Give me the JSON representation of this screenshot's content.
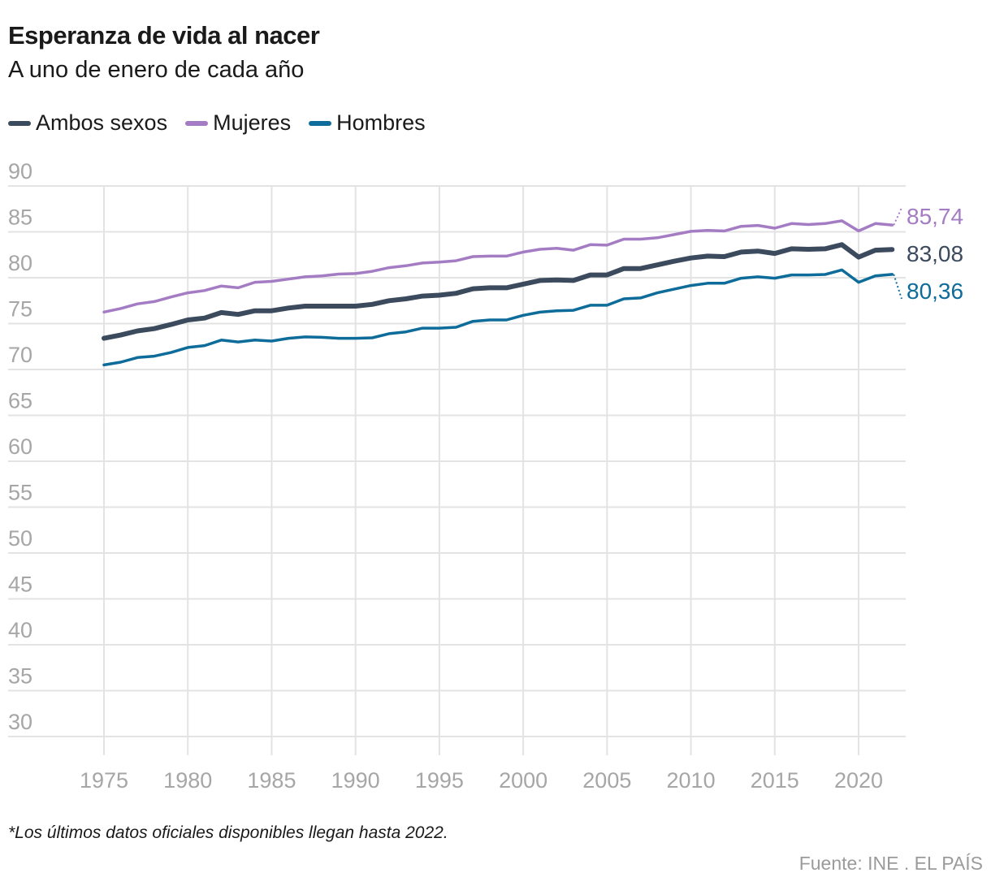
{
  "header": {
    "title": "Esperanza de vida al nacer",
    "subtitle": "A uno de enero de cada año"
  },
  "legend": [
    {
      "label": "Ambos sexos",
      "color": "#3c4a5e"
    },
    {
      "label": "Mujeres",
      "color": "#a47cc4"
    },
    {
      "label": "Hombres",
      "color": "#0d6c99"
    }
  ],
  "footer": {
    "note": "*Los últimos datos oficiales disponibles llegan hasta 2022.",
    "source": "Fuente: INE . EL PAÍS"
  },
  "chart_data": {
    "type": "line",
    "title": "Esperanza de vida al nacer",
    "subtitle": "A uno de enero de cada año",
    "xlabel": "",
    "ylabel": "",
    "x": [
      1975,
      1976,
      1977,
      1978,
      1979,
      1980,
      1981,
      1982,
      1983,
      1984,
      1985,
      1986,
      1987,
      1988,
      1989,
      1990,
      1991,
      1992,
      1993,
      1994,
      1995,
      1996,
      1997,
      1998,
      1999,
      2000,
      2001,
      2002,
      2003,
      2004,
      2005,
      2006,
      2007,
      2008,
      2009,
      2010,
      2011,
      2012,
      2013,
      2014,
      2015,
      2016,
      2017,
      2018,
      2019,
      2020,
      2021,
      2022
    ],
    "xlim": [
      1975,
      2022
    ],
    "x_ticks": [
      "1975",
      "1980",
      "1985",
      "1990",
      "1995",
      "2000",
      "2005",
      "2010",
      "2015",
      "2020"
    ],
    "ylim": [
      30,
      90
    ],
    "y_ticks": [
      "30",
      "35",
      "40",
      "45",
      "50",
      "55",
      "60",
      "65",
      "70",
      "75",
      "80",
      "85",
      "90"
    ],
    "grid": true,
    "legend_position": "top-left",
    "series": [
      {
        "name": "Ambos sexos",
        "color": "#3c4a5e",
        "end_label": "83,08",
        "values": [
          73.4,
          73.75,
          74.2,
          74.45,
          74.9,
          75.4,
          75.6,
          76.2,
          76.0,
          76.4,
          76.4,
          76.7,
          76.9,
          76.9,
          76.9,
          76.9,
          77.1,
          77.5,
          77.7,
          78.0,
          78.1,
          78.3,
          78.8,
          78.9,
          78.9,
          79.3,
          79.7,
          79.75,
          79.7,
          80.3,
          80.3,
          81.0,
          81.0,
          81.4,
          81.8,
          82.15,
          82.35,
          82.3,
          82.8,
          82.9,
          82.65,
          83.15,
          83.1,
          83.15,
          83.6,
          82.25,
          83.0,
          83.08
        ]
      },
      {
        "name": "Mujeres",
        "color": "#a47cc4",
        "end_label": "85,74",
        "values": [
          76.26,
          76.65,
          77.15,
          77.4,
          77.9,
          78.35,
          78.6,
          79.1,
          78.9,
          79.5,
          79.6,
          79.85,
          80.1,
          80.2,
          80.4,
          80.45,
          80.7,
          81.1,
          81.3,
          81.6,
          81.7,
          81.85,
          82.3,
          82.35,
          82.35,
          82.8,
          83.1,
          83.2,
          83.0,
          83.6,
          83.55,
          84.2,
          84.2,
          84.35,
          84.7,
          85.05,
          85.15,
          85.1,
          85.6,
          85.7,
          85.4,
          85.9,
          85.8,
          85.9,
          86.2,
          85.1,
          85.9,
          85.74
        ]
      },
      {
        "name": "Hombres",
        "color": "#0d6c99",
        "end_label": "80,36",
        "values": [
          70.5,
          70.8,
          71.3,
          71.45,
          71.85,
          72.4,
          72.6,
          73.2,
          73.0,
          73.2,
          73.1,
          73.4,
          73.55,
          73.5,
          73.4,
          73.4,
          73.45,
          73.9,
          74.1,
          74.5,
          74.5,
          74.6,
          75.25,
          75.4,
          75.4,
          75.9,
          76.25,
          76.4,
          76.45,
          77.0,
          77.0,
          77.7,
          77.8,
          78.35,
          78.75,
          79.15,
          79.4,
          79.4,
          79.95,
          80.1,
          79.95,
          80.3,
          80.3,
          80.35,
          80.85,
          79.5,
          80.2,
          80.36
        ]
      }
    ]
  }
}
